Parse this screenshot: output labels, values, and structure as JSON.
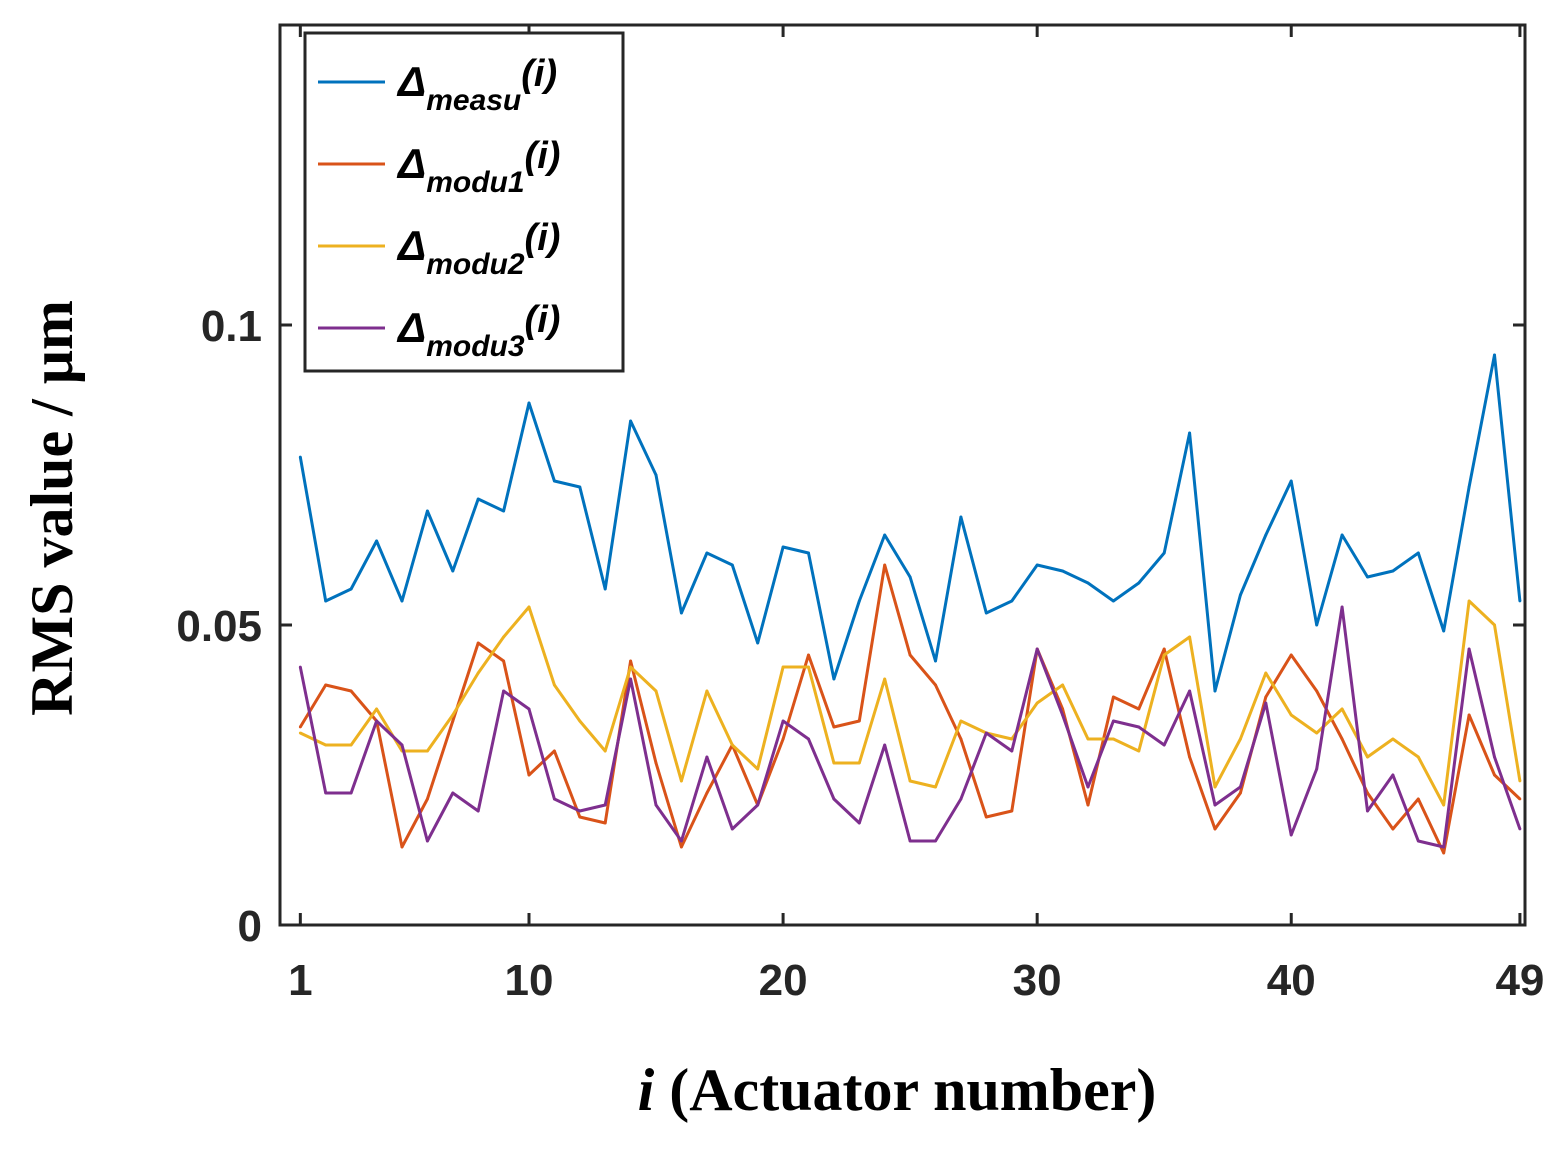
{
  "chart_data": {
    "type": "line",
    "title": "",
    "xlabel_italic": "i",
    "xlabel": " (Actuator number)",
    "ylabel": "RMS value / μm",
    "xlim": [
      0.2,
      49.2
    ],
    "ylim": [
      0,
      0.15
    ],
    "xticks": [
      1,
      10,
      20,
      30,
      40,
      49
    ],
    "xtick_labels": [
      "1",
      "10",
      "20",
      "30",
      "40",
      "49"
    ],
    "yticks": [
      0,
      0.05,
      0.1
    ],
    "ytick_labels": [
      "0",
      "0.05",
      "0.1"
    ],
    "grid": false,
    "legend_position": "top-left",
    "x": [
      1,
      2,
      3,
      4,
      5,
      6,
      7,
      8,
      9,
      10,
      11,
      12,
      13,
      14,
      15,
      16,
      17,
      18,
      19,
      20,
      21,
      22,
      23,
      24,
      25,
      26,
      27,
      28,
      29,
      30,
      31,
      32,
      33,
      34,
      35,
      36,
      37,
      38,
      39,
      40,
      41,
      42,
      43,
      44,
      45,
      46,
      47,
      48,
      49
    ],
    "series": [
      {
        "name": "measu",
        "legend_symbol": "Δ",
        "legend_suffix": "(i)",
        "color": "#0072BD",
        "values": [
          0.078,
          0.054,
          0.056,
          0.064,
          0.054,
          0.069,
          0.059,
          0.071,
          0.069,
          0.087,
          0.074,
          0.073,
          0.056,
          0.084,
          0.075,
          0.052,
          0.062,
          0.06,
          0.047,
          0.063,
          0.062,
          0.041,
          0.054,
          0.065,
          0.058,
          0.044,
          0.068,
          0.052,
          0.054,
          0.06,
          0.059,
          0.057,
          0.054,
          0.057,
          0.062,
          0.082,
          0.039,
          0.055,
          0.065,
          0.074,
          0.05,
          0.065,
          0.058,
          0.059,
          0.062,
          0.049,
          0.073,
          0.095,
          0.054
        ]
      },
      {
        "name": "modu1",
        "legend_symbol": "Δ",
        "legend_suffix": "(i)",
        "color": "#D95319",
        "values": [
          0.033,
          0.04,
          0.039,
          0.034,
          0.013,
          0.021,
          0.034,
          0.047,
          0.044,
          0.025,
          0.029,
          0.018,
          0.017,
          0.044,
          0.027,
          0.013,
          0.022,
          0.03,
          0.02,
          0.031,
          0.045,
          0.033,
          0.034,
          0.06,
          0.045,
          0.04,
          0.031,
          0.018,
          0.019,
          0.046,
          0.036,
          0.02,
          0.038,
          0.036,
          0.046,
          0.028,
          0.016,
          0.022,
          0.038,
          0.045,
          0.039,
          0.031,
          0.022,
          0.016,
          0.021,
          0.012,
          0.035,
          0.025,
          0.021
        ]
      },
      {
        "name": "modu2",
        "legend_symbol": "Δ",
        "legend_suffix": "(i)",
        "color": "#EDB120",
        "values": [
          0.032,
          0.03,
          0.03,
          0.036,
          0.029,
          0.029,
          0.035,
          0.042,
          0.048,
          0.053,
          0.04,
          0.034,
          0.029,
          0.043,
          0.039,
          0.024,
          0.039,
          0.03,
          0.026,
          0.043,
          0.043,
          0.027,
          0.027,
          0.041,
          0.024,
          0.023,
          0.034,
          0.032,
          0.031,
          0.037,
          0.04,
          0.031,
          0.031,
          0.029,
          0.045,
          0.048,
          0.023,
          0.031,
          0.042,
          0.035,
          0.032,
          0.036,
          0.028,
          0.031,
          0.028,
          0.02,
          0.054,
          0.05,
          0.024
        ]
      },
      {
        "name": "modu3",
        "legend_symbol": "Δ",
        "legend_suffix": "(i)",
        "color": "#7E2F8E",
        "values": [
          0.043,
          0.022,
          0.022,
          0.034,
          0.03,
          0.014,
          0.022,
          0.019,
          0.039,
          0.036,
          0.021,
          0.019,
          0.02,
          0.041,
          0.02,
          0.014,
          0.028,
          0.016,
          0.02,
          0.034,
          0.031,
          0.021,
          0.017,
          0.03,
          0.014,
          0.014,
          0.021,
          0.032,
          0.029,
          0.046,
          0.035,
          0.023,
          0.034,
          0.033,
          0.03,
          0.039,
          0.02,
          0.023,
          0.037,
          0.015,
          0.026,
          0.053,
          0.019,
          0.025,
          0.014,
          0.013,
          0.046,
          0.028,
          0.016
        ]
      }
    ]
  }
}
